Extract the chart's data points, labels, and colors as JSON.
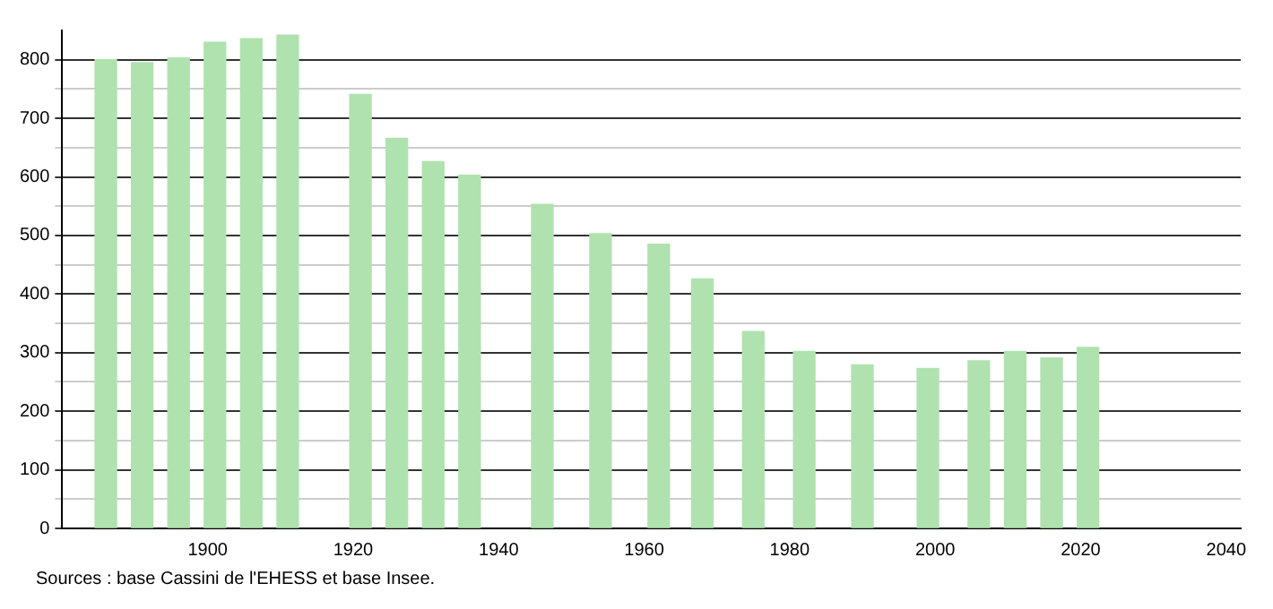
{
  "chart_data": {
    "type": "bar",
    "x": [
      1886,
      1891,
      1896,
      1901,
      1906,
      1911,
      1921,
      1926,
      1931,
      1936,
      1946,
      1954,
      1962,
      1968,
      1975,
      1982,
      1990,
      1999,
      2006,
      2011,
      2016,
      2021
    ],
    "values": [
      800,
      795,
      803,
      830,
      836,
      842,
      741,
      666,
      626,
      603,
      553,
      503,
      485,
      426,
      336,
      302,
      279,
      273,
      286,
      302,
      291,
      309
    ],
    "color": "#b0e2b0",
    "xlim": [
      1880,
      2042
    ],
    "xticks": [
      1900,
      1920,
      1940,
      1960,
      1980,
      2000,
      2020,
      2040
    ],
    "ylim": [
      0,
      850
    ],
    "yticks": [
      0,
      {
        "value": 50,
        "label": null
      },
      100,
      {
        "value": 150,
        "label": null
      },
      200,
      {
        "value": 250,
        "label": null
      },
      300,
      {
        "value": 350,
        "label": null
      },
      400,
      {
        "value": 450,
        "label": null
      },
      500,
      {
        "value": 550,
        "label": null
      },
      600,
      {
        "value": 650,
        "label": null
      },
      700,
      {
        "value": 750,
        "label": null
      },
      800
    ],
    "grid": "y",
    "annotations": [
      "Sources : base Cassini de l'EHESS et base Insee."
    ]
  }
}
